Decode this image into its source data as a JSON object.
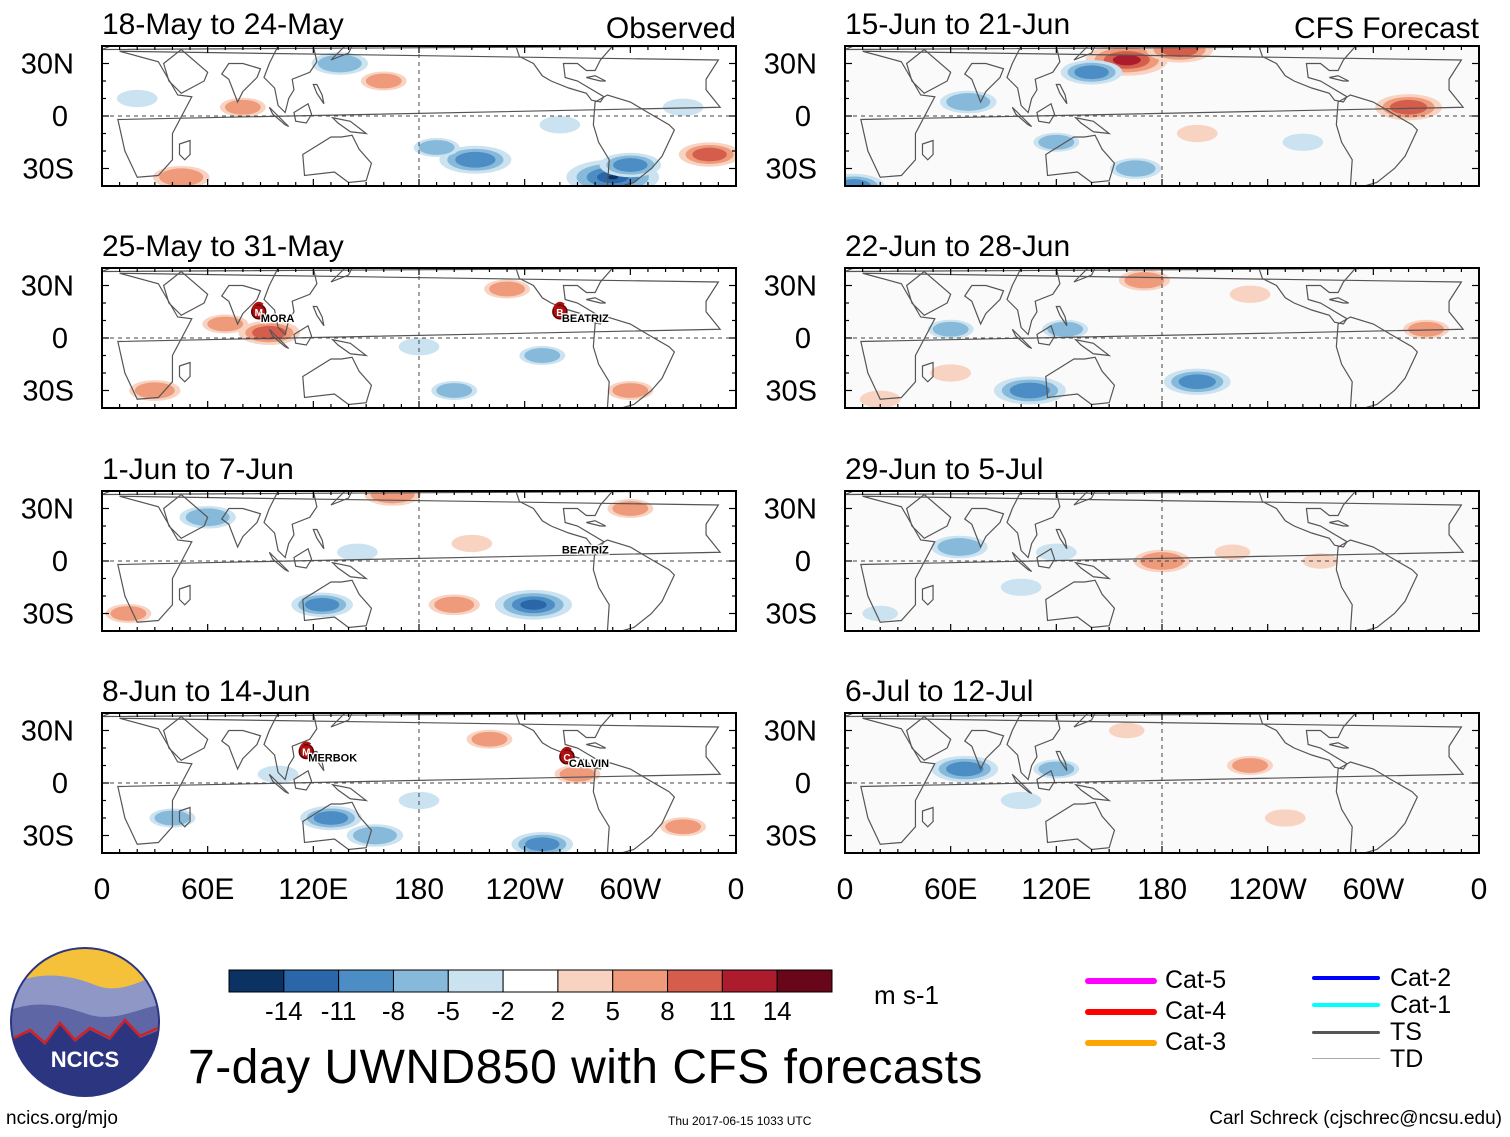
{
  "main_title": "7-day UWND850 with CFS forecasts",
  "footer": {
    "url": "ncics.org/mjo",
    "timestamp": "Thu 2017-06-15 1033 UTC",
    "author": "Carl Schreck (cjschrec@ncsu.edu)"
  },
  "logo": {
    "text": "NCICS"
  },
  "colorbar": {
    "units": "m s-1",
    "tick_labels": [
      "-14",
      "-11",
      "-8",
      "-5",
      "-2",
      "2",
      "5",
      "8",
      "11",
      "14"
    ],
    "colors": [
      "#0b3263",
      "#2a66a8",
      "#4b8dc4",
      "#86b9da",
      "#cbe2f0",
      "#ffffff",
      "#f9d3c1",
      "#ee9a7b",
      "#d55d4b",
      "#ac1c2c",
      "#69061a"
    ]
  },
  "legend": {
    "items": [
      {
        "label": "Cat-5",
        "color": "#ff00ff"
      },
      {
        "label": "Cat-4",
        "color": "#ff0000"
      },
      {
        "label": "Cat-3",
        "color": "#ffa500"
      },
      {
        "label": "Cat-2",
        "color": "#0000ff"
      },
      {
        "label": "Cat-1",
        "color": "#00ffff"
      },
      {
        "label": "TS",
        "color": "#555555"
      },
      {
        "label": "TD",
        "color": "#aaaaaa"
      }
    ]
  },
  "chart_data": {
    "type": "heatmap",
    "variable": "850-hPa zonal wind anomaly",
    "x_tick_labels": [
      "0",
      "60E",
      "120E",
      "180",
      "120W",
      "60W",
      "0"
    ],
    "y_tick_labels": [
      "30N",
      "0",
      "30S"
    ],
    "lon_range": [
      0,
      360
    ],
    "lat_range": [
      -40,
      40
    ],
    "column_headers": {
      "left": "Observed",
      "right": "CFS Forecast"
    },
    "panels": [
      {
        "id": "obs1",
        "title": "18-May to 24-May",
        "column": "left",
        "row": 0,
        "blobs": [
          {
            "lon": 212,
            "lat": -25,
            "val": -10
          },
          {
            "lon": 290,
            "lat": -35,
            "val": -14
          },
          {
            "lon": 300,
            "lat": -28,
            "val": -8
          },
          {
            "lon": 345,
            "lat": -22,
            "val": 8
          },
          {
            "lon": 45,
            "lat": -35,
            "val": 7
          },
          {
            "lon": 135,
            "lat": 30,
            "val": -7
          },
          {
            "lon": 160,
            "lat": 20,
            "val": 5
          },
          {
            "lon": 80,
            "lat": 5,
            "val": 5
          },
          {
            "lon": 190,
            "lat": -18,
            "val": -5
          },
          {
            "lon": 330,
            "lat": 5,
            "val": -4
          },
          {
            "lon": 20,
            "lat": 10,
            "val": -4
          },
          {
            "lon": 260,
            "lat": -5,
            "val": -4
          }
        ]
      },
      {
        "id": "obs2",
        "title": "25-May to 31-May",
        "column": "left",
        "row": 1,
        "blobs": [
          {
            "lon": 95,
            "lat": 3,
            "val": 8
          },
          {
            "lon": 70,
            "lat": 8,
            "val": 5
          },
          {
            "lon": 250,
            "lat": -10,
            "val": -5
          },
          {
            "lon": 180,
            "lat": -5,
            "val": -4
          },
          {
            "lon": 30,
            "lat": -30,
            "val": 6
          },
          {
            "lon": 230,
            "lat": 28,
            "val": 5
          },
          {
            "lon": 200,
            "lat": -30,
            "val": -5
          },
          {
            "lon": 300,
            "lat": -30,
            "val": 5
          }
        ],
        "storms": [
          {
            "name": "MORA",
            "lon": 89,
            "lat": 15,
            "letter": "M"
          },
          {
            "name": "BEATRIZ",
            "lon": 260,
            "lat": 15,
            "letter": "B"
          }
        ]
      },
      {
        "id": "obs3",
        "title": "1-Jun to 7-Jun",
        "column": "left",
        "row": 2,
        "blobs": [
          {
            "lon": 245,
            "lat": -25,
            "val": -11
          },
          {
            "lon": 125,
            "lat": -25,
            "val": -8
          },
          {
            "lon": 200,
            "lat": -25,
            "val": 6
          },
          {
            "lon": 165,
            "lat": 38,
            "val": 7
          },
          {
            "lon": 60,
            "lat": 25,
            "val": -7
          },
          {
            "lon": 15,
            "lat": -30,
            "val": 5
          },
          {
            "lon": 145,
            "lat": 5,
            "val": -4
          },
          {
            "lon": 300,
            "lat": 30,
            "val": 5
          },
          {
            "lon": 210,
            "lat": 10,
            "val": 4
          }
        ],
        "storms": [
          {
            "name": "BEATRIZ",
            "lon": 260,
            "lat": 10,
            "letter": ""
          }
        ]
      },
      {
        "id": "obs4",
        "title": "8-Jun to 14-Jun",
        "column": "left",
        "row": 3,
        "blobs": [
          {
            "lon": 130,
            "lat": -20,
            "val": -8
          },
          {
            "lon": 155,
            "lat": -30,
            "val": -7
          },
          {
            "lon": 250,
            "lat": -35,
            "val": -8
          },
          {
            "lon": 220,
            "lat": 25,
            "val": 5
          },
          {
            "lon": 270,
            "lat": 5,
            "val": 5
          },
          {
            "lon": 40,
            "lat": -20,
            "val": -5
          },
          {
            "lon": 100,
            "lat": 5,
            "val": -4
          },
          {
            "lon": 330,
            "lat": -25,
            "val": 5
          },
          {
            "lon": 180,
            "lat": -10,
            "val": -4
          }
        ],
        "storms": [
          {
            "name": "MERBOK",
            "lon": 116,
            "lat": 18,
            "letter": "M"
          },
          {
            "name": "CALVIN",
            "lon": 264,
            "lat": 15,
            "letter": "C"
          }
        ]
      },
      {
        "id": "fc1",
        "title": "15-Jun to 21-Jun",
        "column": "right",
        "row": 0,
        "blobs": [
          {
            "lon": 160,
            "lat": 32,
            "val": 12
          },
          {
            "lon": 190,
            "lat": 38,
            "val": 9
          },
          {
            "lon": 140,
            "lat": 25,
            "val": -8
          },
          {
            "lon": 320,
            "lat": 5,
            "val": 9
          },
          {
            "lon": 70,
            "lat": 8,
            "val": -7
          },
          {
            "lon": 5,
            "lat": -40,
            "val": -8
          },
          {
            "lon": 165,
            "lat": -30,
            "val": -6
          },
          {
            "lon": 120,
            "lat": -15,
            "val": -5
          },
          {
            "lon": 260,
            "lat": -15,
            "val": -4
          },
          {
            "lon": 200,
            "lat": -10,
            "val": 4
          }
        ]
      },
      {
        "id": "fc2",
        "title": "22-Jun to 28-Jun",
        "column": "right",
        "row": 1,
        "blobs": [
          {
            "lon": 200,
            "lat": -25,
            "val": -9
          },
          {
            "lon": 105,
            "lat": -30,
            "val": -10
          },
          {
            "lon": 60,
            "lat": 5,
            "val": -5
          },
          {
            "lon": 125,
            "lat": 5,
            "val": -5
          },
          {
            "lon": 330,
            "lat": 5,
            "val": 5
          },
          {
            "lon": 170,
            "lat": 33,
            "val": 6
          },
          {
            "lon": 230,
            "lat": 25,
            "val": 4
          },
          {
            "lon": 60,
            "lat": -20,
            "val": 4
          },
          {
            "lon": 20,
            "lat": -35,
            "val": 4
          }
        ]
      },
      {
        "id": "fc3",
        "title": "29-Jun to 5-Jul",
        "column": "right",
        "row": 2,
        "blobs": [
          {
            "lon": 65,
            "lat": 8,
            "val": -7
          },
          {
            "lon": 120,
            "lat": 5,
            "val": -4
          },
          {
            "lon": 180,
            "lat": 0,
            "val": 7
          },
          {
            "lon": 220,
            "lat": 5,
            "val": 3
          },
          {
            "lon": 100,
            "lat": -15,
            "val": -4
          },
          {
            "lon": 20,
            "lat": -30,
            "val": -3
          },
          {
            "lon": 270,
            "lat": 0,
            "val": 3
          }
        ]
      },
      {
        "id": "fc4",
        "title": "6-Jul to 12-Jul",
        "column": "right",
        "row": 3,
        "blobs": [
          {
            "lon": 68,
            "lat": 8,
            "val": -9
          },
          {
            "lon": 120,
            "lat": 8,
            "val": -5
          },
          {
            "lon": 230,
            "lat": 10,
            "val": 5
          },
          {
            "lon": 250,
            "lat": -20,
            "val": 4
          },
          {
            "lon": 100,
            "lat": -10,
            "val": -4
          },
          {
            "lon": 160,
            "lat": 30,
            "val": 3
          }
        ]
      }
    ]
  }
}
